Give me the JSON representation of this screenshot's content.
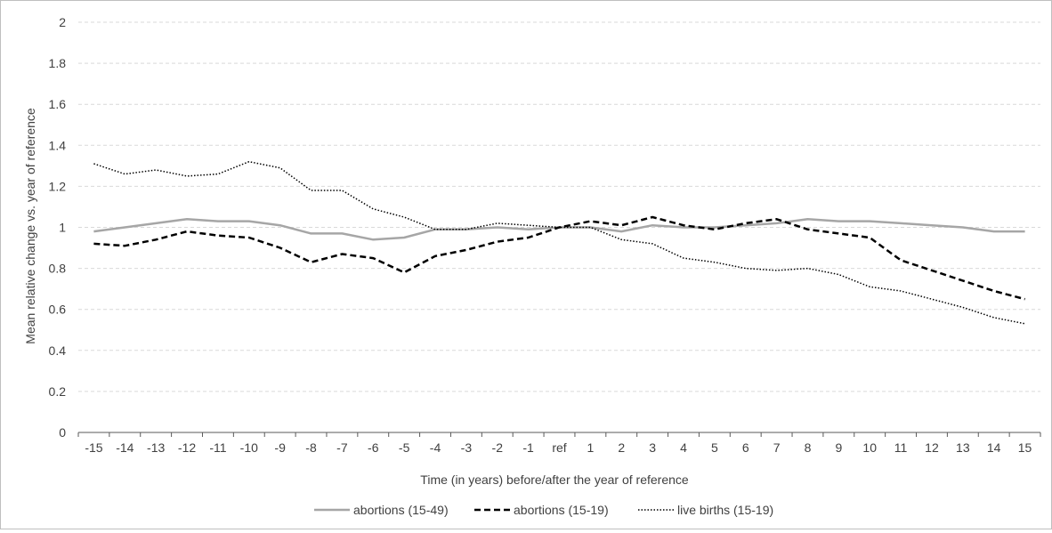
{
  "chart_data": {
    "type": "line",
    "title": "",
    "xlabel": "Time (in years) before/after the year of reference",
    "ylabel": "Mean relative change vs. year of reference",
    "ylim": [
      0,
      2
    ],
    "yticks": [
      "0",
      "0.2",
      "0.4",
      "0.6",
      "0.8",
      "1",
      "1.2",
      "1.4",
      "1.6",
      "1.8",
      "2"
    ],
    "categories": [
      "-15",
      "-14",
      "-13",
      "-12",
      "-11",
      "-10",
      "-9",
      "-8",
      "-7",
      "-6",
      "-5",
      "-4",
      "-3",
      "-2",
      "-1",
      "ref",
      "1",
      "2",
      "3",
      "4",
      "5",
      "6",
      "7",
      "8",
      "9",
      "10",
      "11",
      "12",
      "13",
      "14",
      "15"
    ],
    "grid": true,
    "legend_position": "bottom",
    "series": [
      {
        "name": "abortions (15-49)",
        "style": "solid",
        "color": "#a6a6a6",
        "values": [
          0.98,
          1.0,
          1.02,
          1.04,
          1.03,
          1.03,
          1.01,
          0.97,
          0.97,
          0.94,
          0.95,
          0.99,
          0.99,
          1.0,
          0.99,
          1.0,
          1.0,
          0.98,
          1.01,
          1.0,
          1.0,
          1.01,
          1.02,
          1.04,
          1.03,
          1.03,
          1.02,
          1.01,
          1.0,
          0.98,
          0.98
        ]
      },
      {
        "name": "abortions (15-19)",
        "style": "dashed",
        "color": "#000000",
        "values": [
          0.92,
          0.91,
          0.94,
          0.98,
          0.96,
          0.95,
          0.9,
          0.83,
          0.87,
          0.85,
          0.78,
          0.86,
          0.89,
          0.93,
          0.95,
          1.0,
          1.03,
          1.01,
          1.05,
          1.01,
          0.99,
          1.02,
          1.04,
          0.99,
          0.97,
          0.95,
          0.84,
          0.79,
          0.74,
          0.69,
          0.65
        ]
      },
      {
        "name": "live births (15-19)",
        "style": "dotted",
        "color": "#000000",
        "values": [
          1.31,
          1.26,
          1.28,
          1.25,
          1.26,
          1.32,
          1.29,
          1.18,
          1.18,
          1.09,
          1.05,
          0.99,
          0.99,
          1.02,
          1.01,
          1.0,
          1.0,
          0.94,
          0.92,
          0.85,
          0.83,
          0.8,
          0.79,
          0.8,
          0.77,
          0.71,
          0.69,
          0.65,
          0.61,
          0.56,
          0.53
        ]
      }
    ]
  }
}
